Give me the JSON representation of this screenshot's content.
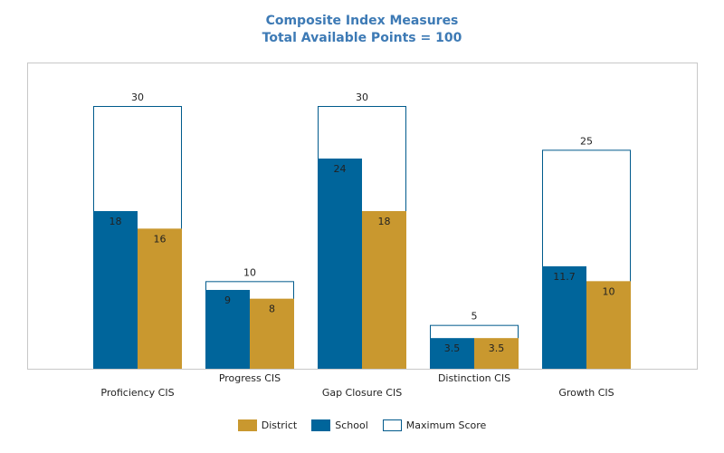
{
  "title": {
    "line1": "Composite Index Measures",
    "line2": "Total Available Points = 100"
  },
  "colors": {
    "title": "#3d7ab5",
    "school": "#00659b",
    "district": "#c9982f",
    "max_fill": "#ffffff",
    "max_border": "#005a8c",
    "frame": "#c8c8c8"
  },
  "legend": {
    "district": "District",
    "school": "School",
    "max": "Maximum Score"
  },
  "chart_data": {
    "type": "bar",
    "categories": [
      "Proficiency CIS",
      "Progress CIS",
      "Gap Closure CIS",
      "Distinction CIS",
      "Growth CIS"
    ],
    "series": [
      {
        "name": "Maximum Score",
        "values": [
          30,
          10,
          30,
          5,
          25
        ],
        "labels": [
          "30",
          "10",
          "30",
          "5",
          "25"
        ]
      },
      {
        "name": "School",
        "values": [
          18,
          9,
          24,
          3.5,
          11.7
        ],
        "labels": [
          "18",
          "9",
          "24",
          "3.5",
          "11.7"
        ]
      },
      {
        "name": "District",
        "values": [
          16,
          8,
          18,
          3.5,
          10
        ],
        "labels": [
          "16",
          "8",
          "18",
          "3.5",
          "10"
        ]
      }
    ],
    "ylim": [
      0,
      30
    ],
    "grid": false,
    "legend_position": "bottom"
  }
}
